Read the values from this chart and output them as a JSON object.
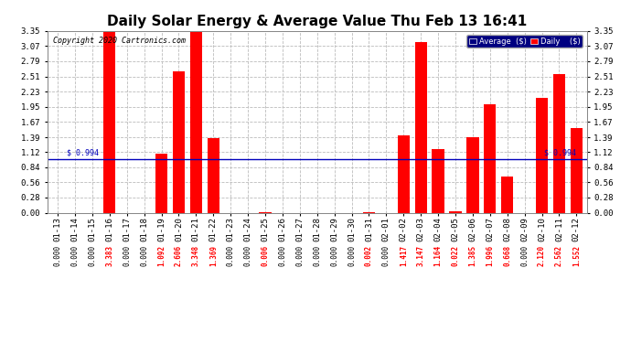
{
  "title": "Daily Solar Energy & Average Value Thu Feb 13 16:41",
  "copyright": "Copyright 2020 Cartronics.com",
  "categories": [
    "01-13",
    "01-14",
    "01-15",
    "01-16",
    "01-17",
    "01-18",
    "01-19",
    "01-20",
    "01-21",
    "01-22",
    "01-23",
    "01-24",
    "01-25",
    "01-26",
    "01-27",
    "01-28",
    "01-29",
    "01-30",
    "01-31",
    "02-01",
    "02-02",
    "02-03",
    "02-04",
    "02-05",
    "02-06",
    "02-07",
    "02-08",
    "02-09",
    "02-10",
    "02-11",
    "02-12"
  ],
  "values": [
    0.0,
    0.0,
    0.0,
    3.383,
    0.0,
    0.0,
    1.092,
    2.606,
    3.348,
    1.369,
    0.0,
    0.0,
    0.006,
    0.0,
    0.0,
    0.0,
    0.0,
    0.0,
    0.002,
    0.0,
    1.417,
    3.147,
    1.164,
    0.022,
    1.385,
    1.996,
    0.668,
    0.0,
    2.12,
    2.562,
    1.552
  ],
  "average_value": 0.994,
  "average_label": "$ 0.994",
  "ylim": [
    0.0,
    3.35
  ],
  "yticks": [
    0.0,
    0.28,
    0.56,
    0.84,
    1.12,
    1.39,
    1.67,
    1.95,
    2.23,
    2.51,
    2.79,
    3.07,
    3.35
  ],
  "bar_color": "#ff0000",
  "average_line_color": "#0000bb",
  "background_color": "#ffffff",
  "grid_color": "#bbbbbb",
  "title_fontsize": 11,
  "tick_fontsize": 6.5,
  "value_fontsize": 5.5,
  "legend_avg_color": "#000080",
  "legend_daily_color": "#ff0000"
}
